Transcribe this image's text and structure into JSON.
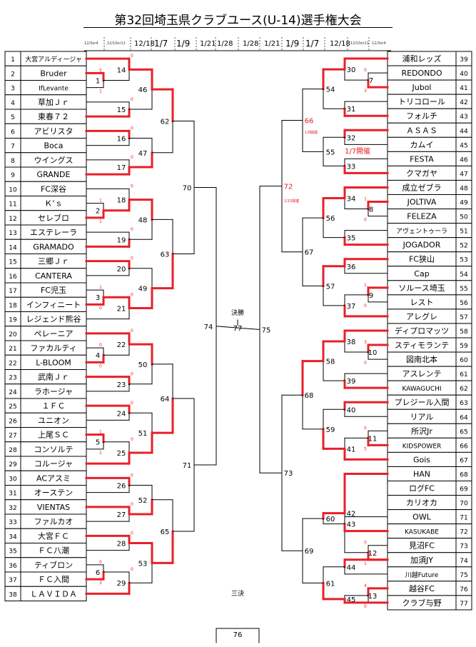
{
  "title": "第32回埼玉県クラブユース(U-14)選手権大会",
  "dates": [
    {
      "text": "12/3or4",
      "size": "sm"
    },
    {
      "text": "12/10or11",
      "size": "sm"
    },
    {
      "text": "12/18",
      "size": "md"
    },
    {
      "text": "1/7",
      "size": "lg"
    },
    {
      "text": "1/9",
      "size": "lg"
    },
    {
      "text": "1/21",
      "size": "md"
    },
    {
      "text": "1/28",
      "size": "md"
    },
    {
      "text": "1/28",
      "size": "md"
    },
    {
      "text": "1/21",
      "size": "md"
    },
    {
      "text": "1/9",
      "size": "lg"
    },
    {
      "text": "1/7",
      "size": "lg"
    },
    {
      "text": "12/18",
      "size": "md"
    },
    {
      "text": "12/10or11",
      "size": "sm"
    },
    {
      "text": "12/3or4",
      "size": "sm"
    }
  ],
  "left_teams": [
    {
      "no": "1",
      "name": "大宮アルディージャ"
    },
    {
      "no": "2",
      "name": "Bruder"
    },
    {
      "no": "3",
      "name": "IfLevante"
    },
    {
      "no": "4",
      "name": "草加Ｊｒ"
    },
    {
      "no": "5",
      "name": "東春７２"
    },
    {
      "no": "6",
      "name": "アビリスタ"
    },
    {
      "no": "7",
      "name": "Boca"
    },
    {
      "no": "8",
      "name": "ウイングス"
    },
    {
      "no": "9",
      "name": "GRANDE"
    },
    {
      "no": "10",
      "name": "FC深谷"
    },
    {
      "no": "11",
      "name": "Ｋ’ｓ"
    },
    {
      "no": "12",
      "name": "セレブロ"
    },
    {
      "no": "13",
      "name": "エステレーラ"
    },
    {
      "no": "14",
      "name": "GRAMADO"
    },
    {
      "no": "15",
      "name": "三郷Ｊｒ"
    },
    {
      "no": "16",
      "name": "CANTERA"
    },
    {
      "no": "17",
      "name": "FC児玉"
    },
    {
      "no": "18",
      "name": "インフィニート"
    },
    {
      "no": "19",
      "name": "レジェンド熊谷"
    },
    {
      "no": "20",
      "name": "ペレーニア"
    },
    {
      "no": "21",
      "name": "ファカルティ"
    },
    {
      "no": "22",
      "name": "L-BLOOM"
    },
    {
      "no": "23",
      "name": "武南Ｊｒ"
    },
    {
      "no": "24",
      "name": "ラホージャ"
    },
    {
      "no": "25",
      "name": "１ＦＣ"
    },
    {
      "no": "26",
      "name": "ユニオン"
    },
    {
      "no": "27",
      "name": "上尾ＳＣ"
    },
    {
      "no": "28",
      "name": "コンソルテ"
    },
    {
      "no": "29",
      "name": "コルージャ"
    },
    {
      "no": "30",
      "name": "ACアスミ"
    },
    {
      "no": "31",
      "name": "オーステン"
    },
    {
      "no": "32",
      "name": "VIENTAS"
    },
    {
      "no": "33",
      "name": "ファルカオ"
    },
    {
      "no": "34",
      "name": "大宮ＦＣ"
    },
    {
      "no": "35",
      "name": "ＦＣ八潮"
    },
    {
      "no": "36",
      "name": "ティブロン"
    },
    {
      "no": "37",
      "name": "ＦＣ入間"
    },
    {
      "no": "38",
      "name": "ＬＡＶＩＤＡ"
    }
  ],
  "right_teams": [
    {
      "no": "39",
      "name": "浦和レッズ"
    },
    {
      "no": "40",
      "name": "REDONDO"
    },
    {
      "no": "41",
      "name": "Jubol"
    },
    {
      "no": "42",
      "name": "トリコロール"
    },
    {
      "no": "43",
      "name": "フォルチ"
    },
    {
      "no": "44",
      "name": "ＡＳＡＳ"
    },
    {
      "no": "45",
      "name": "カムイ"
    },
    {
      "no": "46",
      "name": "FESTA"
    },
    {
      "no": "47",
      "name": "クマガヤ"
    },
    {
      "no": "48",
      "name": "成立ゼブラ"
    },
    {
      "no": "49",
      "name": "JOLTIVA"
    },
    {
      "no": "50",
      "name": "FELEZA"
    },
    {
      "no": "51",
      "name": "アヴェントゥーラ"
    },
    {
      "no": "52",
      "name": "JOGADOR"
    },
    {
      "no": "53",
      "name": "FC狭山"
    },
    {
      "no": "54",
      "name": "Cap"
    },
    {
      "no": "55",
      "name": "ソルース埼玉"
    },
    {
      "no": "56",
      "name": "レスト"
    },
    {
      "no": "57",
      "name": "アレグレ"
    },
    {
      "no": "58",
      "name": "ディプロマッツ"
    },
    {
      "no": "59",
      "name": "スティモランテ"
    },
    {
      "no": "60",
      "name": "図南北本"
    },
    {
      "no": "61",
      "name": "アスレンテ"
    },
    {
      "no": "62",
      "name": "KAWAGUCHI"
    },
    {
      "no": "63",
      "name": "プレジール入間"
    },
    {
      "no": "64",
      "name": "リアル"
    },
    {
      "no": "65",
      "name": "所沢Jr"
    },
    {
      "no": "66",
      "name": "KIDSPOWER"
    },
    {
      "no": "67",
      "name": "Gois"
    },
    {
      "no": "68",
      "name": "HAN"
    },
    {
      "no": "69",
      "name": "ログFC"
    },
    {
      "no": "70",
      "name": "カリオカ"
    },
    {
      "no": "71",
      "name": "OWL"
    },
    {
      "no": "72",
      "name": "KASUKABE"
    },
    {
      "no": "73",
      "name": "見沼FC"
    },
    {
      "no": "74",
      "name": "加須JY"
    },
    {
      "no": "75",
      "name": "川越Future"
    },
    {
      "no": "76",
      "name": "越谷FC"
    },
    {
      "no": "77",
      "name": "クラブ与野"
    }
  ],
  "center": {
    "final_label": "決勝",
    "final_no": "77",
    "third_label": "三決",
    "third_no": "76"
  },
  "notes": {
    "n66_date": "1/8開催",
    "n55_date": "1/7開催",
    "n72_date": "1/15開催"
  },
  "colors": {
    "win_line": "#e8202a",
    "line": "#000000",
    "note_red": "#e8202a"
  }
}
